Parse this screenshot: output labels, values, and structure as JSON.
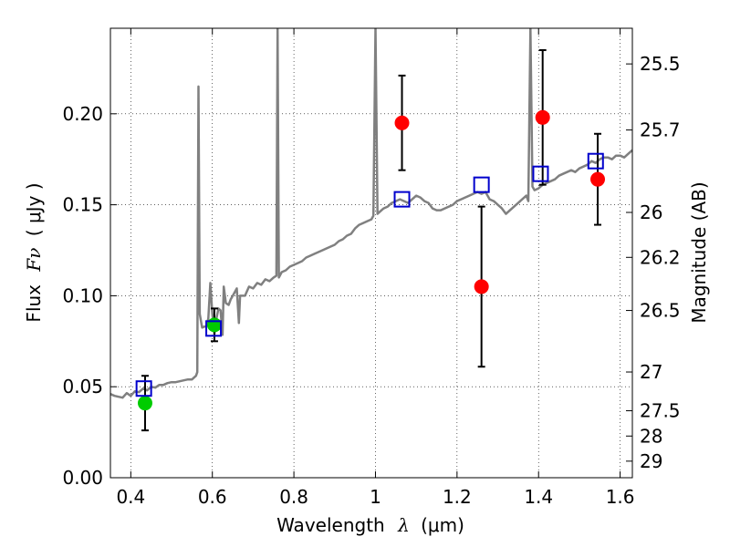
{
  "chart_data": {
    "type": "scatter",
    "xlabel_text": "Wavelength",
    "xlabel_symbol": "λ",
    "xlabel_unit": "(μm)",
    "ylabel_text": "Flux",
    "ylabel_symbol": "Fν",
    "ylabel_unit": "( μJy )",
    "y2label": "Magnitude (AB)",
    "xlim": [
      0.35,
      1.63
    ],
    "ylim": [
      0.0,
      0.247
    ],
    "grid": true,
    "x_ticks": [
      {
        "value": 0.4,
        "label": "0.4"
      },
      {
        "value": 0.6,
        "label": "0.6"
      },
      {
        "value": 0.8,
        "label": "0.8"
      },
      {
        "value": 1.0,
        "label": "1"
      },
      {
        "value": 1.2,
        "label": "1.2"
      },
      {
        "value": 1.4,
        "label": "1.4"
      },
      {
        "value": 1.6,
        "label": "1.6"
      }
    ],
    "y_ticks": [
      {
        "value": 0.0,
        "label": "0.00"
      },
      {
        "value": 0.05,
        "label": "0.05"
      },
      {
        "value": 0.1,
        "label": "0.10"
      },
      {
        "value": 0.15,
        "label": "0.15"
      },
      {
        "value": 0.2,
        "label": "0.20"
      }
    ],
    "y2_ticks": [
      {
        "flux": 0.2274,
        "label": "25.5"
      },
      {
        "flux": 0.1911,
        "label": "25.7"
      },
      {
        "flux": 0.1458,
        "label": "26"
      },
      {
        "flux": 0.1211,
        "label": "26.2"
      },
      {
        "flux": 0.0919,
        "label": "26.5"
      },
      {
        "flux": 0.0581,
        "label": "27"
      },
      {
        "flux": 0.0368,
        "label": "27.5"
      },
      {
        "flux": 0.0229,
        "label": "28"
      },
      {
        "flux": 0.0091,
        "label": "29"
      }
    ],
    "series": [
      {
        "kind": "line",
        "color": "#808080",
        "points": [
          [
            0.35,
            0.046
          ],
          [
            0.36,
            0.045
          ],
          [
            0.37,
            0.0445
          ],
          [
            0.38,
            0.044
          ],
          [
            0.39,
            0.0465
          ],
          [
            0.4,
            0.045
          ],
          [
            0.41,
            0.0475
          ],
          [
            0.42,
            0.047
          ],
          [
            0.43,
            0.049
          ],
          [
            0.44,
            0.048
          ],
          [
            0.45,
            0.05
          ],
          [
            0.46,
            0.0495
          ],
          [
            0.47,
            0.051
          ],
          [
            0.48,
            0.051
          ],
          [
            0.49,
            0.052
          ],
          [
            0.5,
            0.0525
          ],
          [
            0.51,
            0.0525
          ],
          [
            0.52,
            0.053
          ],
          [
            0.53,
            0.0535
          ],
          [
            0.54,
            0.054
          ],
          [
            0.55,
            0.054
          ],
          [
            0.555,
            0.055
          ],
          [
            0.56,
            0.056
          ],
          [
            0.563,
            0.058
          ],
          [
            0.566,
            0.215
          ],
          [
            0.569,
            0.09
          ],
          [
            0.575,
            0.0825
          ],
          [
            0.58,
            0.083
          ],
          [
            0.585,
            0.083
          ],
          [
            0.59,
            0.0875
          ],
          [
            0.595,
            0.107
          ],
          [
            0.6,
            0.09
          ],
          [
            0.605,
            0.079
          ],
          [
            0.61,
            0.0875
          ],
          [
            0.615,
            0.093
          ],
          [
            0.62,
            0.092
          ],
          [
            0.625,
            0.0785
          ],
          [
            0.628,
            0.105
          ],
          [
            0.633,
            0.096
          ],
          [
            0.64,
            0.095
          ],
          [
            0.645,
            0.098
          ],
          [
            0.65,
            0.1
          ],
          [
            0.66,
            0.104
          ],
          [
            0.665,
            0.085
          ],
          [
            0.668,
            0.1
          ],
          [
            0.68,
            0.1
          ],
          [
            0.69,
            0.105
          ],
          [
            0.7,
            0.104
          ],
          [
            0.71,
            0.107
          ],
          [
            0.72,
            0.106
          ],
          [
            0.73,
            0.109
          ],
          [
            0.74,
            0.108
          ],
          [
            0.75,
            0.11
          ],
          [
            0.757,
            0.111
          ],
          [
            0.76,
            0.247
          ],
          [
            0.763,
            0.11
          ],
          [
            0.77,
            0.113
          ],
          [
            0.78,
            0.114
          ],
          [
            0.79,
            0.116
          ],
          [
            0.8,
            0.117
          ],
          [
            0.81,
            0.118
          ],
          [
            0.82,
            0.119
          ],
          [
            0.83,
            0.121
          ],
          [
            0.84,
            0.122
          ],
          [
            0.85,
            0.123
          ],
          [
            0.86,
            0.124
          ],
          [
            0.87,
            0.125
          ],
          [
            0.88,
            0.126
          ],
          [
            0.89,
            0.127
          ],
          [
            0.9,
            0.128
          ],
          [
            0.91,
            0.13
          ],
          [
            0.92,
            0.131
          ],
          [
            0.93,
            0.133
          ],
          [
            0.94,
            0.134
          ],
          [
            0.95,
            0.137
          ],
          [
            0.96,
            0.139
          ],
          [
            0.97,
            0.14
          ],
          [
            0.98,
            0.141
          ],
          [
            0.99,
            0.142
          ],
          [
            0.995,
            0.144
          ],
          [
            1.0,
            0.247
          ],
          [
            1.005,
            0.145
          ],
          [
            1.01,
            0.146
          ],
          [
            1.02,
            0.148
          ],
          [
            1.03,
            0.149
          ],
          [
            1.04,
            0.151
          ],
          [
            1.05,
            0.152
          ],
          [
            1.06,
            0.153
          ],
          [
            1.07,
            0.152
          ],
          [
            1.08,
            0.151
          ],
          [
            1.09,
            0.153
          ],
          [
            1.1,
            0.155
          ],
          [
            1.11,
            0.154
          ],
          [
            1.12,
            0.152
          ],
          [
            1.13,
            0.151
          ],
          [
            1.14,
            0.148
          ],
          [
            1.15,
            0.147
          ],
          [
            1.16,
            0.147
          ],
          [
            1.17,
            0.148
          ],
          [
            1.18,
            0.149
          ],
          [
            1.19,
            0.15
          ],
          [
            1.2,
            0.152
          ],
          [
            1.21,
            0.153
          ],
          [
            1.22,
            0.154
          ],
          [
            1.23,
            0.155
          ],
          [
            1.24,
            0.156
          ],
          [
            1.25,
            0.157
          ],
          [
            1.26,
            0.156
          ],
          [
            1.27,
            0.157
          ],
          [
            1.28,
            0.153
          ],
          [
            1.29,
            0.152
          ],
          [
            1.3,
            0.15
          ],
          [
            1.31,
            0.148
          ],
          [
            1.32,
            0.145
          ],
          [
            1.33,
            0.147
          ],
          [
            1.34,
            0.149
          ],
          [
            1.35,
            0.151
          ],
          [
            1.36,
            0.153
          ],
          [
            1.37,
            0.155
          ],
          [
            1.375,
            0.152
          ],
          [
            1.38,
            0.247
          ],
          [
            1.385,
            0.16
          ],
          [
            1.39,
            0.158
          ],
          [
            1.4,
            0.159
          ],
          [
            1.41,
            0.161
          ],
          [
            1.42,
            0.162
          ],
          [
            1.43,
            0.163
          ],
          [
            1.44,
            0.164
          ],
          [
            1.45,
            0.166
          ],
          [
            1.46,
            0.167
          ],
          [
            1.47,
            0.168
          ],
          [
            1.48,
            0.169
          ],
          [
            1.49,
            0.168
          ],
          [
            1.5,
            0.17
          ],
          [
            1.51,
            0.171
          ],
          [
            1.52,
            0.172
          ],
          [
            1.53,
            0.174
          ],
          [
            1.54,
            0.173
          ],
          [
            1.55,
            0.175
          ],
          [
            1.56,
            0.176
          ],
          [
            1.57,
            0.176
          ],
          [
            1.58,
            0.175
          ],
          [
            1.59,
            0.177
          ],
          [
            1.6,
            0.177
          ],
          [
            1.61,
            0.176
          ],
          [
            1.62,
            0.178
          ],
          [
            1.63,
            0.18
          ]
        ]
      },
      {
        "kind": "points",
        "marker": "circle",
        "color": "#ff0000",
        "points": [
          {
            "x": 1.065,
            "y": 0.195,
            "err": 0.026
          },
          {
            "x": 1.26,
            "y": 0.105,
            "err": 0.044
          },
          {
            "x": 1.41,
            "y": 0.198,
            "err": 0.037
          },
          {
            "x": 1.545,
            "y": 0.164,
            "err": 0.025
          }
        ]
      },
      {
        "kind": "points",
        "marker": "circle",
        "color": "#00cc00",
        "points": [
          {
            "x": 0.435,
            "y": 0.041,
            "err": 0.015
          },
          {
            "x": 0.605,
            "y": 0.084,
            "err": 0.009
          }
        ]
      },
      {
        "kind": "points",
        "marker": "square",
        "color": "#0000cc",
        "points": [
          {
            "x": 0.432,
            "y": 0.049
          },
          {
            "x": 0.603,
            "y": 0.082
          },
          {
            "x": 1.065,
            "y": 0.153
          },
          {
            "x": 1.26,
            "y": 0.161
          },
          {
            "x": 1.405,
            "y": 0.167
          },
          {
            "x": 1.54,
            "y": 0.174
          }
        ]
      }
    ]
  }
}
